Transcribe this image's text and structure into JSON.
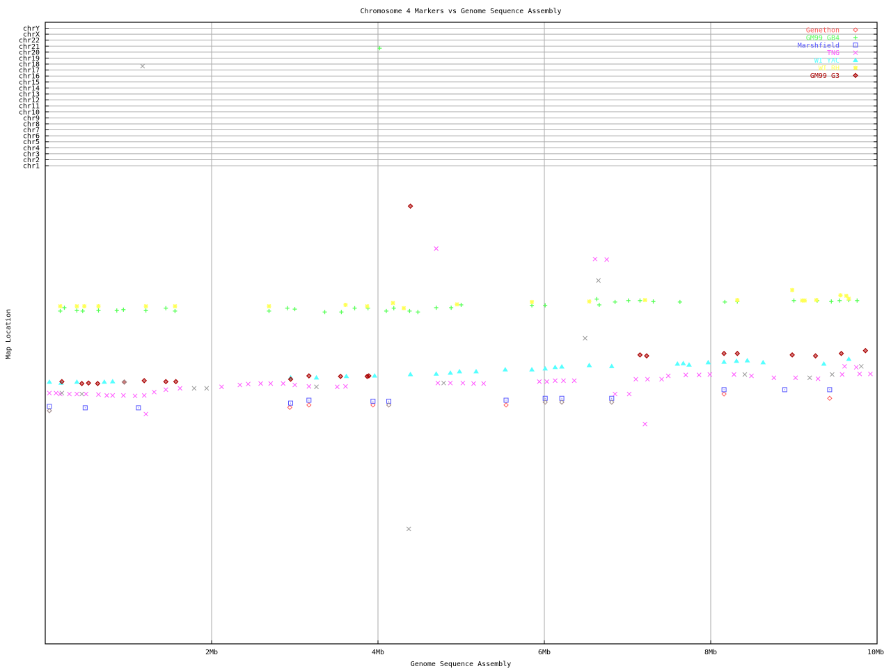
{
  "chart_data": {
    "type": "scatter",
    "title": "Chromosome 4 Markers vs Genome Sequence Assembly",
    "xlabel": "Genome Sequence Assembly",
    "ylabel": "Map Location",
    "xlim": [
      0,
      10
    ],
    "ylim": [
      0,
      100
    ],
    "x_ticks": [
      {
        "value": 2,
        "label": "2Mb"
      },
      {
        "value": 4,
        "label": "4Mb"
      },
      {
        "value": 6,
        "label": "6Mb"
      },
      {
        "value": 8,
        "label": "8Mb"
      },
      {
        "value": 10,
        "label": "10Mb"
      }
    ],
    "chromosome_rows": [
      "chrY",
      "chrX",
      "chr22",
      "chr21",
      "chr20",
      "chr19",
      "chr18",
      "chr17",
      "chr16",
      "chr15",
      "chr14",
      "chr13",
      "chr12",
      "chr11",
      "chr10",
      "chr9",
      "chr8",
      "chr7",
      "chr6",
      "chr5",
      "chr4",
      "chr3",
      "chr2",
      "chr1"
    ],
    "grid": true,
    "legend_position": "top-right",
    "series": [
      {
        "name": "Genethon",
        "marker": "diamond",
        "color": "#ff5555",
        "points": [
          [
            0.05,
            48.9
          ],
          [
            2.94,
            49.6
          ],
          [
            3.17,
            50.1
          ],
          [
            3.94,
            50.1
          ],
          [
            4.13,
            50.1
          ],
          [
            5.54,
            50.1
          ],
          [
            6.01,
            50.7
          ],
          [
            6.21,
            50.7
          ],
          [
            6.81,
            50.7
          ],
          [
            8.16,
            52.4
          ],
          [
            9.43,
            51.5
          ]
        ]
      },
      {
        "name": "GM99 GB4",
        "marker": "plus",
        "color": "#55ff55",
        "points": [
          [
            0.18,
            69.8
          ],
          [
            0.23,
            70.5
          ],
          [
            0.38,
            69.9
          ],
          [
            0.45,
            69.8
          ],
          [
            0.64,
            69.9
          ],
          [
            0.86,
            69.9
          ],
          [
            0.94,
            70.1
          ],
          [
            1.21,
            69.9
          ],
          [
            1.45,
            70.4
          ],
          [
            1.56,
            69.8
          ],
          [
            2.69,
            69.8
          ],
          [
            2.91,
            70.4
          ],
          [
            3.0,
            70.2
          ],
          [
            3.36,
            69.6
          ],
          [
            3.56,
            69.6
          ],
          [
            3.72,
            70.4
          ],
          [
            3.88,
            70.4
          ],
          [
            4.1,
            69.8
          ],
          [
            4.19,
            70.4
          ],
          [
            4.38,
            69.8
          ],
          [
            4.48,
            69.6
          ],
          [
            4.7,
            70.5
          ],
          [
            4.88,
            70.5
          ],
          [
            5.0,
            71.1
          ],
          [
            5.85,
            71.0
          ],
          [
            6.01,
            71.0
          ],
          [
            6.63,
            72.3
          ],
          [
            6.66,
            71.1
          ],
          [
            6.85,
            71.7
          ],
          [
            7.01,
            72.0
          ],
          [
            7.15,
            72.0
          ],
          [
            7.31,
            71.8
          ],
          [
            7.63,
            71.7
          ],
          [
            8.17,
            71.7
          ],
          [
            8.32,
            71.8
          ],
          [
            9.0,
            72.0
          ],
          [
            9.28,
            72.0
          ],
          [
            9.45,
            71.8
          ],
          [
            9.55,
            72.0
          ],
          [
            9.66,
            72.1
          ],
          [
            9.76,
            72.0
          ]
        ],
        "other_chromosome_hits": [
          {
            "x": 4.02,
            "chromosome": "chr21"
          }
        ]
      },
      {
        "name": "Marshfield",
        "marker": "square",
        "color": "#5555ff",
        "points": [
          [
            0.05,
            49.8
          ],
          [
            0.48,
            49.5
          ],
          [
            1.12,
            49.5
          ],
          [
            2.95,
            50.5
          ],
          [
            3.17,
            51.1
          ],
          [
            3.94,
            50.9
          ],
          [
            4.13,
            50.9
          ],
          [
            5.54,
            51.1
          ],
          [
            6.01,
            51.5
          ],
          [
            6.21,
            51.5
          ],
          [
            6.81,
            51.5
          ],
          [
            8.16,
            53.3
          ],
          [
            8.89,
            53.3
          ],
          [
            9.43,
            53.3
          ]
        ]
      },
      {
        "name": "TNG",
        "marker": "cross",
        "color": "#ff55ff",
        "points": [
          [
            0.05,
            52.6
          ],
          [
            0.13,
            52.6
          ],
          [
            0.18,
            52.4
          ],
          [
            0.29,
            52.4
          ],
          [
            0.38,
            52.4
          ],
          [
            0.49,
            52.4
          ],
          [
            0.64,
            52.3
          ],
          [
            0.74,
            52.1
          ],
          [
            0.81,
            52.1
          ],
          [
            0.94,
            52.1
          ],
          [
            1.08,
            52.0
          ],
          [
            1.19,
            52.1
          ],
          [
            1.31,
            52.8
          ],
          [
            1.45,
            53.3
          ],
          [
            1.62,
            53.6
          ],
          [
            2.12,
            53.9
          ],
          [
            2.34,
            54.3
          ],
          [
            2.44,
            54.5
          ],
          [
            2.59,
            54.6
          ],
          [
            2.71,
            54.6
          ],
          [
            2.86,
            54.6
          ],
          [
            3.0,
            54.3
          ],
          [
            3.17,
            54.0
          ],
          [
            3.51,
            53.9
          ],
          [
            3.61,
            54.0
          ],
          [
            4.72,
            54.7
          ],
          [
            4.87,
            54.7
          ],
          [
            5.02,
            54.7
          ],
          [
            5.15,
            54.6
          ],
          [
            5.27,
            54.6
          ],
          [
            5.94,
            55.0
          ],
          [
            6.03,
            55.0
          ],
          [
            6.13,
            55.2
          ],
          [
            6.23,
            55.2
          ],
          [
            6.36,
            55.2
          ],
          [
            7.1,
            55.5
          ],
          [
            7.24,
            55.5
          ],
          [
            7.41,
            55.5
          ],
          [
            7.49,
            56.2
          ],
          [
            7.7,
            56.4
          ],
          [
            7.86,
            56.4
          ],
          [
            7.99,
            56.5
          ],
          [
            8.28,
            56.5
          ],
          [
            8.49,
            56.2
          ],
          [
            8.76,
            55.8
          ],
          [
            9.02,
            55.8
          ],
          [
            9.29,
            55.6
          ],
          [
            9.58,
            56.5
          ],
          [
            9.79,
            56.6
          ],
          [
            9.92,
            56.6
          ],
          [
            1.21,
            48.2
          ],
          [
            4.7,
            82.9
          ],
          [
            6.61,
            80.7
          ],
          [
            6.75,
            80.6
          ],
          [
            6.85,
            52.4
          ],
          [
            7.02,
            52.4
          ],
          [
            7.21,
            46.1
          ],
          [
            9.61,
            58.2
          ],
          [
            9.75,
            58.0
          ]
        ]
      },
      {
        "name": "WI YAC",
        "marker": "triangle",
        "color": "#55ffff",
        "points": [
          [
            0.05,
            54.9
          ],
          [
            0.19,
            54.7
          ],
          [
            0.38,
            54.9
          ],
          [
            0.71,
            54.9
          ],
          [
            0.81,
            55.0
          ],
          [
            2.95,
            55.8
          ],
          [
            3.26,
            55.8
          ],
          [
            3.62,
            56.1
          ],
          [
            3.96,
            56.2
          ],
          [
            4.39,
            56.5
          ],
          [
            4.7,
            56.6
          ],
          [
            4.87,
            56.8
          ],
          [
            4.98,
            57.1
          ],
          [
            5.18,
            57.1
          ],
          [
            5.53,
            57.5
          ],
          [
            5.85,
            57.5
          ],
          [
            6.01,
            57.7
          ],
          [
            6.13,
            58.0
          ],
          [
            6.21,
            58.1
          ],
          [
            6.54,
            58.4
          ],
          [
            6.81,
            58.2
          ],
          [
            7.6,
            58.7
          ],
          [
            7.67,
            58.8
          ],
          [
            7.74,
            58.5
          ],
          [
            7.97,
            59.0
          ],
          [
            8.16,
            59.1
          ],
          [
            8.31,
            59.3
          ],
          [
            8.44,
            59.4
          ],
          [
            8.63,
            59.0
          ],
          [
            9.36,
            58.7
          ],
          [
            9.66,
            59.7
          ]
        ]
      },
      {
        "name": "WI RH",
        "marker": "asterisk",
        "color": "#ffff55",
        "points": [
          [
            0.18,
            70.8
          ],
          [
            0.38,
            70.8
          ],
          [
            0.47,
            70.8
          ],
          [
            0.64,
            70.8
          ],
          [
            1.21,
            70.8
          ],
          [
            1.56,
            70.8
          ],
          [
            2.69,
            70.8
          ],
          [
            3.61,
            71.1
          ],
          [
            3.87,
            70.8
          ],
          [
            4.18,
            71.5
          ],
          [
            4.31,
            70.4
          ],
          [
            4.95,
            71.2
          ],
          [
            5.85,
            71.7
          ],
          [
            6.54,
            71.8
          ],
          [
            7.21,
            72.1
          ],
          [
            8.32,
            72.1
          ],
          [
            8.98,
            74.2
          ],
          [
            9.1,
            72.0
          ],
          [
            9.13,
            72.0
          ],
          [
            9.27,
            72.1
          ],
          [
            9.56,
            73.1
          ],
          [
            9.63,
            73.0
          ],
          [
            9.66,
            72.4
          ]
        ]
      },
      {
        "name": "GM99 G3",
        "marker": "diamond-bold",
        "color": "#aa0000",
        "points": [
          [
            0.2,
            55.0
          ],
          [
            0.44,
            54.6
          ],
          [
            0.52,
            54.7
          ],
          [
            0.63,
            54.6
          ],
          [
            0.95,
            54.9
          ],
          [
            1.19,
            55.2
          ],
          [
            1.45,
            55.0
          ],
          [
            1.57,
            55.0
          ],
          [
            2.95,
            55.5
          ],
          [
            3.17,
            56.2
          ],
          [
            3.55,
            56.1
          ],
          [
            3.87,
            56.1
          ],
          [
            3.89,
            56.2
          ],
          [
            4.39,
            91.8
          ],
          [
            7.15,
            60.6
          ],
          [
            7.23,
            60.4
          ],
          [
            8.16,
            60.9
          ],
          [
            8.32,
            60.9
          ],
          [
            8.98,
            60.6
          ],
          [
            9.26,
            60.4
          ],
          [
            9.57,
            60.9
          ],
          [
            9.86,
            61.5
          ]
        ]
      },
      {
        "name": "",
        "marker": "cross",
        "color": "#999999",
        "points": [
          [
            0.2,
            52.6
          ],
          [
            0.44,
            52.4
          ],
          [
            1.79,
            53.6
          ],
          [
            1.94,
            53.6
          ],
          [
            3.26,
            53.9
          ],
          [
            4.79,
            54.7
          ],
          [
            6.49,
            64.1
          ],
          [
            6.65,
            76.2
          ],
          [
            8.41,
            56.5
          ],
          [
            9.19,
            55.8
          ],
          [
            9.46,
            56.5
          ],
          [
            9.81,
            58.2
          ],
          [
            4.37,
            24.1
          ]
        ],
        "other_chromosome_hits": [
          {
            "x": 1.17,
            "chromosome": "chr18"
          }
        ]
      },
      {
        "name": "",
        "marker": "diamond",
        "color": "#999999",
        "points": [
          [
            0.05,
            48.9
          ],
          [
            0.95,
            54.9
          ],
          [
            4.13,
            50.1
          ],
          [
            6.01,
            50.7
          ],
          [
            6.21,
            50.7
          ],
          [
            6.81,
            50.7
          ]
        ]
      }
    ]
  }
}
